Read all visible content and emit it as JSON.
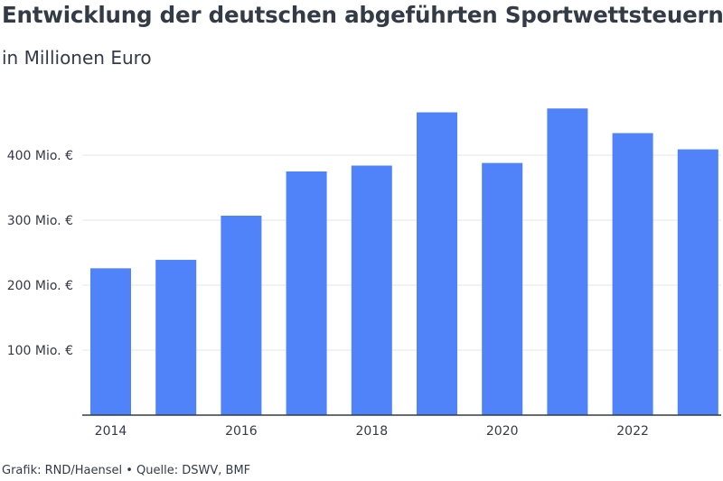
{
  "header": {
    "title": "Entwicklung der deutschen abgeführten Sportwettsteuern",
    "subtitle": "in Millionen Euro"
  },
  "footer": {
    "credit": "Grafik: RND/Haensel • Quelle: DSWV, BMF"
  },
  "chart_data": {
    "type": "bar",
    "categories": [
      "2014",
      "2015",
      "2016",
      "2017",
      "2018",
      "2019",
      "2020",
      "2021",
      "2022",
      "2023"
    ],
    "values": [
      226,
      239,
      307,
      375,
      384,
      466,
      388,
      472,
      434,
      409
    ],
    "x_tick_labels": [
      "2014",
      "2016",
      "2018",
      "2020",
      "2022"
    ],
    "y_ticks": [
      100,
      200,
      300,
      400
    ],
    "y_tick_labels": [
      "100 Mio. €",
      "200 Mio. €",
      "300 Mio. €",
      "400 Mio. €"
    ],
    "ylim": [
      0,
      500
    ],
    "unit": "Mio. €",
    "grid": true,
    "legend": "none",
    "colors": {
      "bar": "#5082fa",
      "grid": "#e6e6e6",
      "axis": "#333b47",
      "text": "#333b47"
    }
  }
}
